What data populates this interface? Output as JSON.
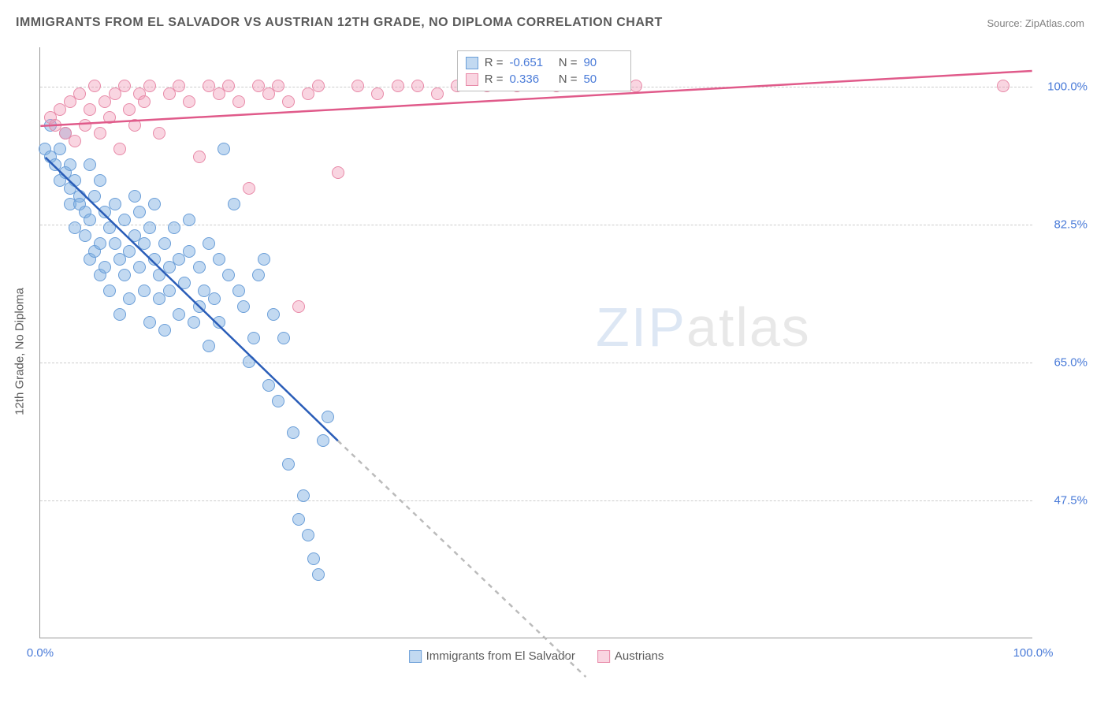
{
  "title": "IMMIGRANTS FROM EL SALVADOR VS AUSTRIAN 12TH GRADE, NO DIPLOMA CORRELATION CHART",
  "source_prefix": "Source: ",
  "source_name": "ZipAtlas.com",
  "ylabel": "12th Grade, No Diploma",
  "watermark_z": "ZIP",
  "watermark_rest": "atlas",
  "chart": {
    "type": "scatter",
    "xlim": [
      0,
      100
    ],
    "ylim": [
      30,
      105
    ],
    "ytick_labels": [
      "47.5%",
      "65.0%",
      "82.5%",
      "100.0%"
    ],
    "ytick_values": [
      47.5,
      65.0,
      82.5,
      100.0
    ],
    "xtick_labels": [
      "0.0%",
      "100.0%"
    ],
    "xtick_values": [
      0,
      100
    ],
    "background": "#ffffff",
    "grid_color": "#cccccc",
    "series": [
      {
        "name": "Immigrants from El Salvador",
        "fill": "rgba(120,170,225,0.45)",
        "stroke": "#6a9ed8",
        "line_color": "#2a5db8",
        "line_dash_extend": "#bbbbbb",
        "R": "-0.651",
        "N": "90",
        "trend": {
          "x1": 0.5,
          "y1": 91,
          "x2": 30,
          "y2": 55,
          "ext_x2": 55,
          "ext_y2": 25
        },
        "points": [
          [
            0.5,
            92
          ],
          [
            1,
            91
          ],
          [
            1,
            95
          ],
          [
            1.5,
            90
          ],
          [
            2,
            92
          ],
          [
            2,
            88
          ],
          [
            2.5,
            89
          ],
          [
            2.5,
            94
          ],
          [
            3,
            87
          ],
          [
            3,
            90
          ],
          [
            3,
            85
          ],
          [
            3.5,
            82
          ],
          [
            3.5,
            88
          ],
          [
            4,
            86
          ],
          [
            4,
            85
          ],
          [
            4.5,
            84
          ],
          [
            4.5,
            81
          ],
          [
            5,
            83
          ],
          [
            5,
            90
          ],
          [
            5,
            78
          ],
          [
            5.5,
            86
          ],
          [
            5.5,
            79
          ],
          [
            6,
            80
          ],
          [
            6,
            76
          ],
          [
            6,
            88
          ],
          [
            6.5,
            84
          ],
          [
            6.5,
            77
          ],
          [
            7,
            82
          ],
          [
            7,
            74
          ],
          [
            7.5,
            80
          ],
          [
            7.5,
            85
          ],
          [
            8,
            78
          ],
          [
            8,
            71
          ],
          [
            8.5,
            83
          ],
          [
            8.5,
            76
          ],
          [
            9,
            79
          ],
          [
            9,
            73
          ],
          [
            9.5,
            86
          ],
          [
            9.5,
            81
          ],
          [
            10,
            77
          ],
          [
            10,
            84
          ],
          [
            10.5,
            74
          ],
          [
            10.5,
            80
          ],
          [
            11,
            82
          ],
          [
            11,
            70
          ],
          [
            11.5,
            78
          ],
          [
            11.5,
            85
          ],
          [
            12,
            76
          ],
          [
            12,
            73
          ],
          [
            12.5,
            80
          ],
          [
            12.5,
            69
          ],
          [
            13,
            77
          ],
          [
            13,
            74
          ],
          [
            13.5,
            82
          ],
          [
            14,
            78
          ],
          [
            14,
            71
          ],
          [
            14.5,
            75
          ],
          [
            15,
            83
          ],
          [
            15,
            79
          ],
          [
            15.5,
            70
          ],
          [
            16,
            72
          ],
          [
            16,
            77
          ],
          [
            16.5,
            74
          ],
          [
            17,
            80
          ],
          [
            17,
            67
          ],
          [
            17.5,
            73
          ],
          [
            18,
            78
          ],
          [
            18,
            70
          ],
          [
            18.5,
            92
          ],
          [
            19,
            76
          ],
          [
            19.5,
            85
          ],
          [
            20,
            74
          ],
          [
            20.5,
            72
          ],
          [
            21,
            65
          ],
          [
            21.5,
            68
          ],
          [
            22,
            76
          ],
          [
            22.5,
            78
          ],
          [
            23,
            62
          ],
          [
            23.5,
            71
          ],
          [
            24,
            60
          ],
          [
            24.5,
            68
          ],
          [
            25,
            52
          ],
          [
            25.5,
            56
          ],
          [
            26,
            45
          ],
          [
            26.5,
            48
          ],
          [
            27,
            43
          ],
          [
            27.5,
            40
          ],
          [
            28,
            38
          ],
          [
            28.5,
            55
          ],
          [
            29,
            58
          ]
        ]
      },
      {
        "name": "Austrians",
        "fill": "rgba(240,150,180,0.4)",
        "stroke": "#e88aa8",
        "line_color": "#e05a8a",
        "R": "0.336",
        "N": "50",
        "trend": {
          "x1": 0,
          "y1": 95,
          "x2": 100,
          "y2": 102
        },
        "points": [
          [
            1,
            96
          ],
          [
            1.5,
            95
          ],
          [
            2,
            97
          ],
          [
            2.5,
            94
          ],
          [
            3,
            98
          ],
          [
            3.5,
            93
          ],
          [
            4,
            99
          ],
          [
            4.5,
            95
          ],
          [
            5,
            97
          ],
          [
            5.5,
            100
          ],
          [
            6,
            94
          ],
          [
            6.5,
            98
          ],
          [
            7,
            96
          ],
          [
            7.5,
            99
          ],
          [
            8,
            92
          ],
          [
            8.5,
            100
          ],
          [
            9,
            97
          ],
          [
            9.5,
            95
          ],
          [
            10,
            99
          ],
          [
            10.5,
            98
          ],
          [
            11,
            100
          ],
          [
            12,
            94
          ],
          [
            13,
            99
          ],
          [
            14,
            100
          ],
          [
            15,
            98
          ],
          [
            16,
            91
          ],
          [
            17,
            100
          ],
          [
            18,
            99
          ],
          [
            19,
            100
          ],
          [
            20,
            98
          ],
          [
            21,
            87
          ],
          [
            22,
            100
          ],
          [
            23,
            99
          ],
          [
            24,
            100
          ],
          [
            25,
            98
          ],
          [
            26,
            72
          ],
          [
            27,
            99
          ],
          [
            28,
            100
          ],
          [
            30,
            89
          ],
          [
            32,
            100
          ],
          [
            34,
            99
          ],
          [
            36,
            100
          ],
          [
            38,
            100
          ],
          [
            40,
            99
          ],
          [
            42,
            100
          ],
          [
            45,
            100
          ],
          [
            48,
            100
          ],
          [
            52,
            100
          ],
          [
            60,
            100
          ],
          [
            97,
            100
          ]
        ]
      }
    ],
    "legend_bottom": [
      {
        "label": "Immigrants from El Salvador",
        "fill": "rgba(120,170,225,0.45)",
        "stroke": "#6a9ed8"
      },
      {
        "label": "Austrians",
        "fill": "rgba(240,150,180,0.4)",
        "stroke": "#e88aa8"
      }
    ]
  }
}
